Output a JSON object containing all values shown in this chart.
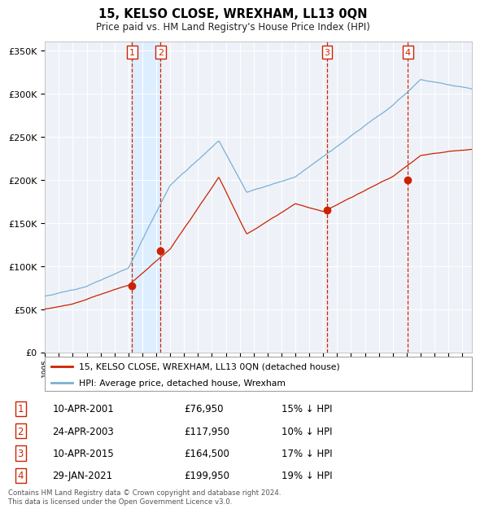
{
  "title": "15, KELSO CLOSE, WREXHAM, LL13 0QN",
  "subtitle": "Price paid vs. HM Land Registry's House Price Index (HPI)",
  "legend_line1": "15, KELSO CLOSE, WREXHAM, LL13 0QN (detached house)",
  "legend_line2": "HPI: Average price, detached house, Wrexham",
  "footer1": "Contains HM Land Registry data © Crown copyright and database right 2024.",
  "footer2": "This data is licensed under the Open Government Licence v3.0.",
  "sale_dates_num": [
    2001.27,
    2003.31,
    2015.27,
    2021.08
  ],
  "sale_prices": [
    76950,
    117950,
    164500,
    199950
  ],
  "sale_labels": [
    "1",
    "2",
    "3",
    "4"
  ],
  "sale_table": [
    [
      "1",
      "10-APR-2001",
      "£76,950",
      "15% ↓ HPI"
    ],
    [
      "2",
      "24-APR-2003",
      "£117,950",
      "10% ↓ HPI"
    ],
    [
      "3",
      "10-APR-2015",
      "£164,500",
      "17% ↓ HPI"
    ],
    [
      "4",
      "29-JAN-2021",
      "£199,950",
      "19% ↓ HPI"
    ]
  ],
  "hpi_color": "#7ab0d4",
  "sale_color": "#cc2200",
  "vline_color": "#cc2200",
  "shade_color": "#ddeeff",
  "background_color": "#eef2f8",
  "ylim": [
    0,
    360000
  ],
  "xlim_start": 1995.0,
  "xlim_end": 2025.7
}
